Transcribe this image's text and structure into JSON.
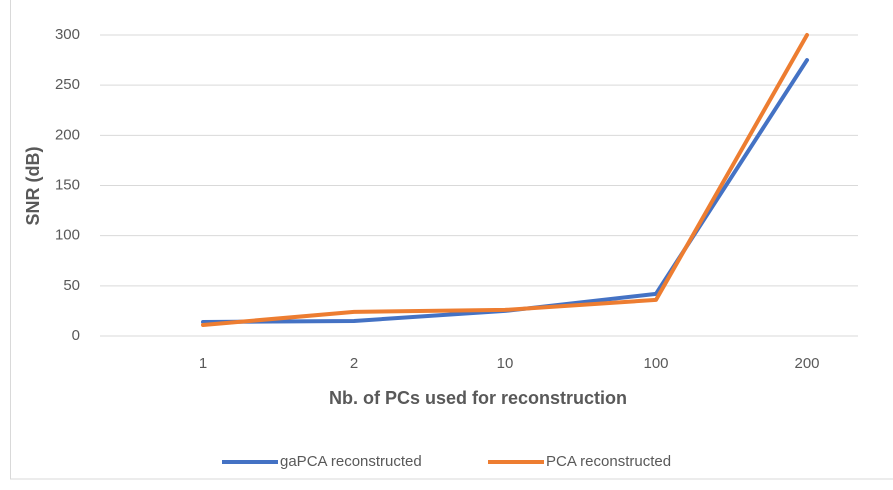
{
  "chart_data": {
    "type": "line",
    "xlabel": "Nb. of PCs used for reconstruction",
    "ylabel": "SNR (dB)",
    "categories": [
      "1",
      "2",
      "10",
      "100",
      "200"
    ],
    "series": [
      {
        "name": "gaPCA reconstructed",
        "color": "#4472c4",
        "values": [
          14,
          15,
          25,
          42,
          275
        ]
      },
      {
        "name": "PCA reconstructed",
        "color": "#ed7d31",
        "values": [
          11,
          24,
          26,
          36,
          300
        ]
      }
    ],
    "ylim": [
      0,
      300
    ],
    "yticks": [
      0,
      50,
      100,
      150,
      200,
      250,
      300
    ],
    "grid": true,
    "legend": "bottom"
  }
}
